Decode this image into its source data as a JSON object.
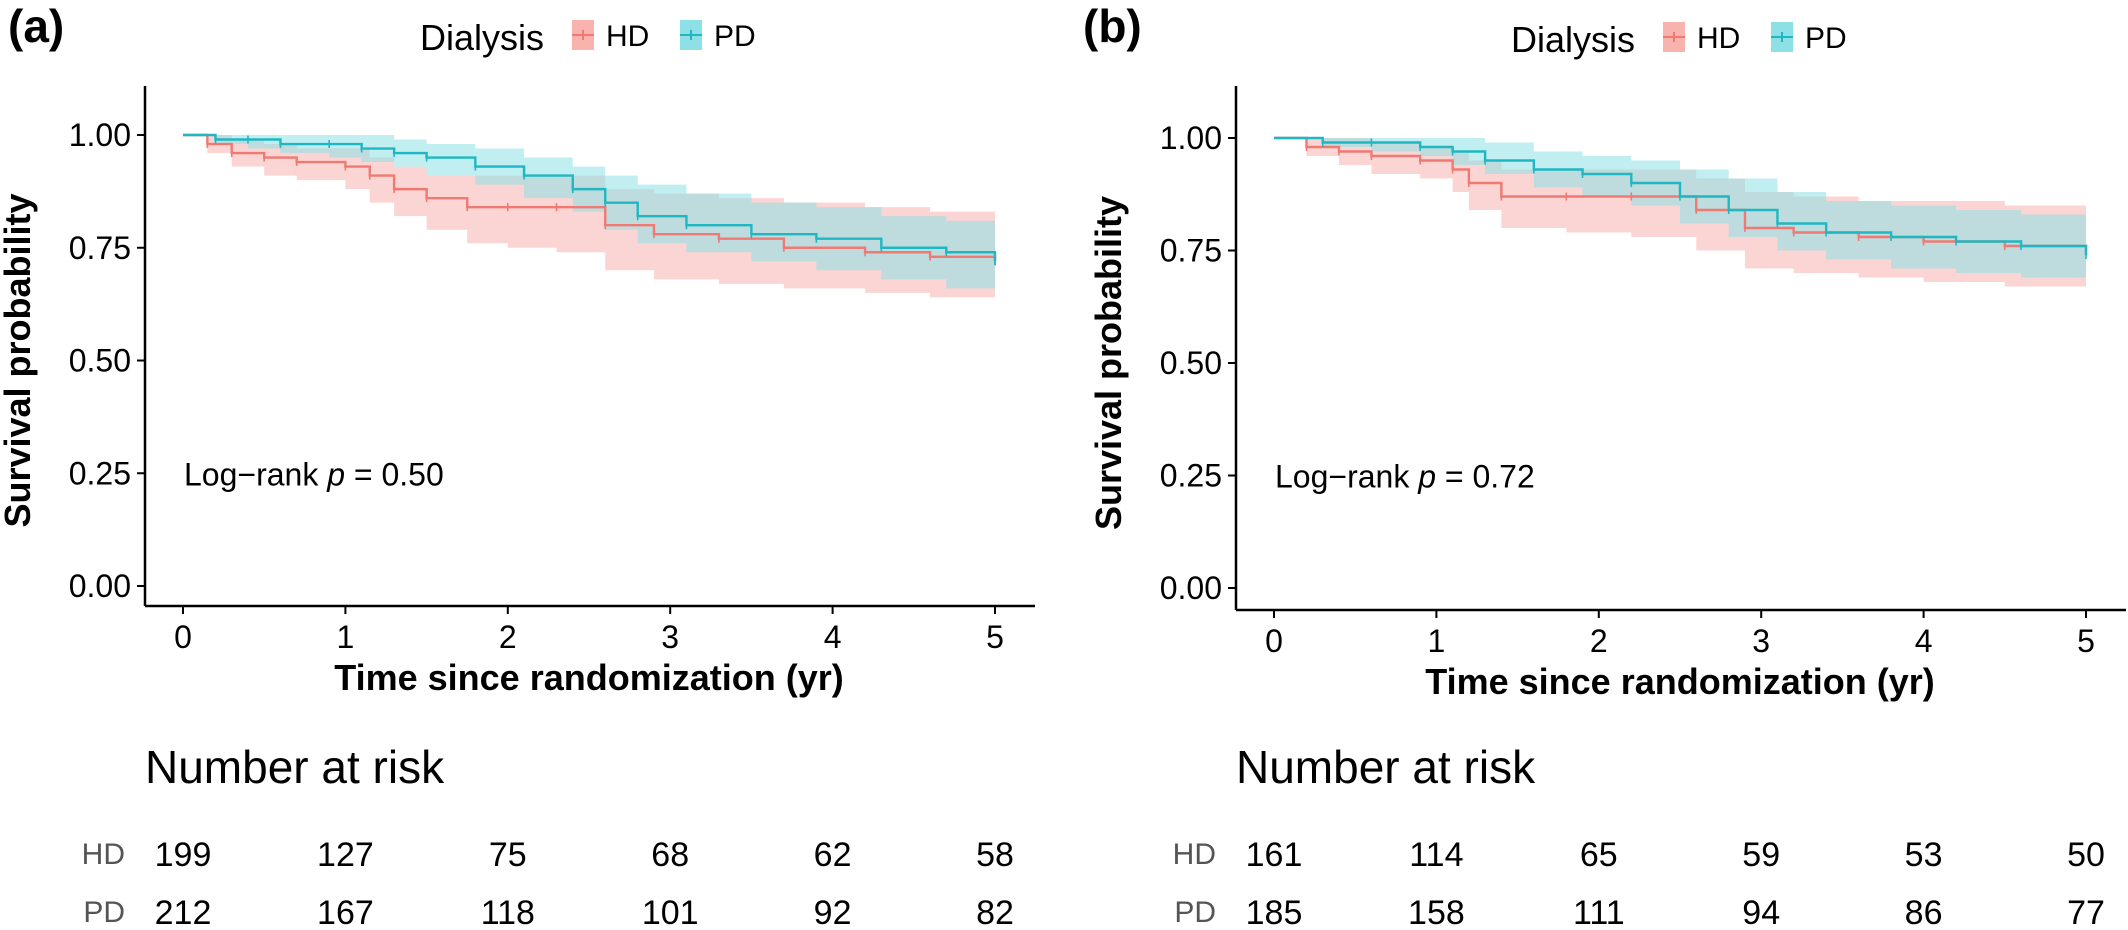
{
  "colors": {
    "hd": "#f07a72",
    "pd": "#1fb7c2",
    "hd_band": "#f8b3ae",
    "pd_band": "#8de0e5"
  },
  "chart_data": [
    {
      "panel": "(a)",
      "type": "line",
      "legend": {
        "title": "Dialysis",
        "entries": [
          "HD",
          "PD"
        ],
        "placement": "top"
      },
      "xlabel": "Time since randomization (yr)",
      "ylabel": "Survival probability",
      "xticks": [
        "0",
        "1",
        "2",
        "3",
        "4",
        "5"
      ],
      "yticks": [
        "0.00",
        "0.25",
        "0.50",
        "0.75",
        "1.00"
      ],
      "xlim": [
        0,
        5
      ],
      "ylim": [
        0,
        1
      ],
      "annotation": {
        "prefix": "Log−rank ",
        "p_symbol": "p",
        "suffix": " = 0.50"
      },
      "series": [
        {
          "name": "HD",
          "x": [
            0,
            0.15,
            0.3,
            0.5,
            0.7,
            1.0,
            1.15,
            1.3,
            1.5,
            1.75,
            2.0,
            2.3,
            2.6,
            2.9,
            3.3,
            3.7,
            4.2,
            4.6,
            5.0
          ],
          "y": [
            1.0,
            0.98,
            0.96,
            0.95,
            0.94,
            0.93,
            0.91,
            0.88,
            0.86,
            0.84,
            0.84,
            0.84,
            0.8,
            0.78,
            0.77,
            0.75,
            0.74,
            0.73,
            0.72
          ],
          "lower": [
            1.0,
            0.96,
            0.93,
            0.91,
            0.9,
            0.88,
            0.85,
            0.82,
            0.79,
            0.76,
            0.75,
            0.74,
            0.7,
            0.68,
            0.67,
            0.66,
            0.65,
            0.64,
            0.63
          ],
          "upper": [
            1.0,
            1.0,
            0.99,
            0.98,
            0.97,
            0.97,
            0.95,
            0.93,
            0.91,
            0.91,
            0.91,
            0.91,
            0.88,
            0.87,
            0.86,
            0.85,
            0.84,
            0.83,
            0.81
          ]
        },
        {
          "name": "PD",
          "x": [
            0,
            0.2,
            0.4,
            0.6,
            0.9,
            1.1,
            1.3,
            1.5,
            1.8,
            2.1,
            2.4,
            2.6,
            2.8,
            3.1,
            3.5,
            3.9,
            4.3,
            4.7,
            5.0
          ],
          "y": [
            1.0,
            0.99,
            0.99,
            0.98,
            0.98,
            0.97,
            0.96,
            0.95,
            0.93,
            0.91,
            0.88,
            0.85,
            0.82,
            0.8,
            0.78,
            0.77,
            0.75,
            0.74,
            0.72
          ],
          "lower": [
            1.0,
            0.98,
            0.97,
            0.96,
            0.95,
            0.94,
            0.93,
            0.91,
            0.89,
            0.86,
            0.83,
            0.79,
            0.76,
            0.74,
            0.72,
            0.7,
            0.68,
            0.66,
            0.64
          ],
          "upper": [
            1.0,
            1.0,
            1.0,
            1.0,
            1.0,
            1.0,
            0.99,
            0.98,
            0.97,
            0.95,
            0.93,
            0.91,
            0.89,
            0.87,
            0.85,
            0.84,
            0.82,
            0.81,
            0.8
          ]
        }
      ],
      "risk_table": {
        "title": "Number at risk",
        "rows": [
          {
            "group": "HD",
            "values": [
              "199",
              "127",
              "75",
              "68",
              "62",
              "58"
            ]
          },
          {
            "group": "PD",
            "values": [
              "212",
              "167",
              "118",
              "101",
              "92",
              "82"
            ]
          }
        ]
      }
    },
    {
      "panel": "(b)",
      "type": "line",
      "legend": {
        "title": "Dialysis",
        "entries": [
          "HD",
          "PD"
        ],
        "placement": "top"
      },
      "xlabel": "Time since randomization (yr)",
      "ylabel": "Survival probability",
      "xticks": [
        "0",
        "1",
        "2",
        "3",
        "4",
        "5"
      ],
      "yticks": [
        "0.00",
        "0.25",
        "0.50",
        "0.75",
        "1.00"
      ],
      "xlim": [
        0,
        5
      ],
      "ylim": [
        0,
        1
      ],
      "annotation": {
        "prefix": "Log−rank ",
        "p_symbol": "p",
        "suffix": " = 0.72"
      },
      "series": [
        {
          "name": "HD",
          "x": [
            0,
            0.2,
            0.4,
            0.6,
            0.9,
            1.1,
            1.2,
            1.4,
            1.8,
            2.2,
            2.6,
            2.9,
            3.2,
            3.6,
            4.0,
            4.5,
            5.0
          ],
          "y": [
            1.0,
            0.98,
            0.97,
            0.96,
            0.95,
            0.93,
            0.9,
            0.87,
            0.87,
            0.87,
            0.84,
            0.8,
            0.79,
            0.78,
            0.77,
            0.76,
            0.75
          ],
          "lower": [
            1.0,
            0.96,
            0.94,
            0.92,
            0.91,
            0.88,
            0.84,
            0.8,
            0.79,
            0.78,
            0.75,
            0.71,
            0.7,
            0.69,
            0.68,
            0.67,
            0.66
          ],
          "upper": [
            1.0,
            1.0,
            1.0,
            0.99,
            0.98,
            0.97,
            0.95,
            0.93,
            0.93,
            0.93,
            0.91,
            0.88,
            0.87,
            0.86,
            0.86,
            0.85,
            0.84
          ]
        },
        {
          "name": "PD",
          "x": [
            0,
            0.3,
            0.6,
            0.9,
            1.1,
            1.3,
            1.6,
            1.9,
            2.2,
            2.5,
            2.8,
            3.1,
            3.4,
            3.8,
            4.2,
            4.6,
            5.0
          ],
          "y": [
            1.0,
            0.99,
            0.99,
            0.98,
            0.97,
            0.95,
            0.93,
            0.92,
            0.9,
            0.87,
            0.84,
            0.81,
            0.79,
            0.78,
            0.77,
            0.76,
            0.74
          ],
          "lower": [
            1.0,
            0.98,
            0.97,
            0.96,
            0.94,
            0.92,
            0.89,
            0.87,
            0.85,
            0.81,
            0.78,
            0.75,
            0.73,
            0.71,
            0.7,
            0.69,
            0.67
          ],
          "upper": [
            1.0,
            1.0,
            1.0,
            1.0,
            1.0,
            0.99,
            0.97,
            0.96,
            0.95,
            0.93,
            0.91,
            0.88,
            0.86,
            0.85,
            0.84,
            0.83,
            0.82
          ]
        }
      ],
      "risk_table": {
        "title": "Number at risk",
        "rows": [
          {
            "group": "HD",
            "values": [
              "161",
              "114",
              "65",
              "59",
              "53",
              "50"
            ]
          },
          {
            "group": "PD",
            "values": [
              "185",
              "158",
              "111",
              "94",
              "86",
              "77"
            ]
          }
        ]
      }
    }
  ]
}
